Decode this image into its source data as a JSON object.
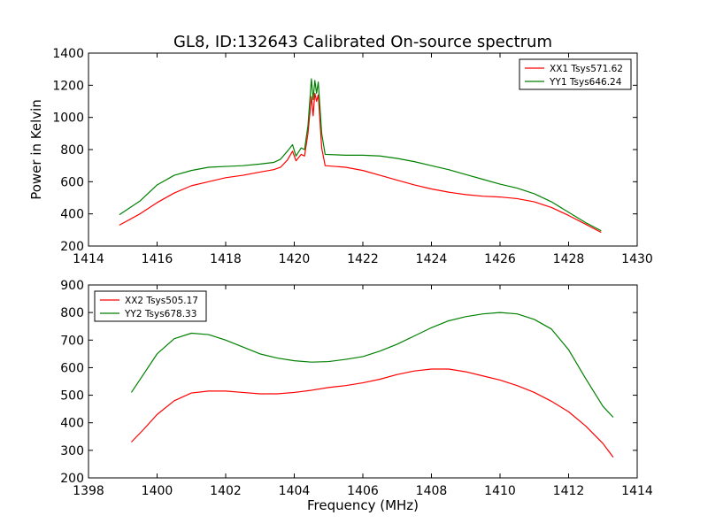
{
  "title": "GL8, ID:132643 Calibrated On-source spectrum",
  "colors": {
    "red": "#ff0000",
    "green": "#008000"
  },
  "chart_data": [
    {
      "type": "line",
      "ylabel": "Power in Kelvin",
      "xlabel": "",
      "xlim": [
        1414,
        1430
      ],
      "ylim": [
        200,
        1400
      ],
      "xticks": [
        1414,
        1416,
        1418,
        1420,
        1422,
        1424,
        1426,
        1428,
        1430
      ],
      "yticks": [
        200,
        400,
        600,
        800,
        1000,
        1200,
        1400
      ],
      "legend_position": "top-right",
      "series": [
        {
          "name": "XX1 Tsys571.62",
          "color": "#ff0000",
          "points": [
            [
              1414.9,
              330
            ],
            [
              1415.5,
              400
            ],
            [
              1416,
              470
            ],
            [
              1416.5,
              530
            ],
            [
              1417,
              575
            ],
            [
              1417.5,
              600
            ],
            [
              1418,
              625
            ],
            [
              1418.5,
              640
            ],
            [
              1419,
              660
            ],
            [
              1419.4,
              675
            ],
            [
              1419.6,
              690
            ],
            [
              1419.8,
              735
            ],
            [
              1419.95,
              790
            ],
            [
              1420.05,
              730
            ],
            [
              1420.2,
              770
            ],
            [
              1420.3,
              760
            ],
            [
              1420.4,
              900
            ],
            [
              1420.5,
              1130
            ],
            [
              1420.55,
              1010
            ],
            [
              1420.6,
              1150
            ],
            [
              1420.65,
              1100
            ],
            [
              1420.7,
              1140
            ],
            [
              1420.8,
              810
            ],
            [
              1420.9,
              700
            ],
            [
              1421.5,
              690
            ],
            [
              1422,
              670
            ],
            [
              1422.5,
              640
            ],
            [
              1423,
              610
            ],
            [
              1423.5,
              580
            ],
            [
              1424,
              555
            ],
            [
              1424.5,
              535
            ],
            [
              1425,
              520
            ],
            [
              1425.5,
              510
            ],
            [
              1426,
              505
            ],
            [
              1426.5,
              495
            ],
            [
              1427,
              475
            ],
            [
              1427.5,
              440
            ],
            [
              1428,
              390
            ],
            [
              1428.5,
              335
            ],
            [
              1428.95,
              285
            ]
          ]
        },
        {
          "name": "YY1 Tsys646.24",
          "color": "#008000",
          "points": [
            [
              1414.9,
              395
            ],
            [
              1415.5,
              480
            ],
            [
              1416,
              580
            ],
            [
              1416.5,
              640
            ],
            [
              1417,
              670
            ],
            [
              1417.5,
              690
            ],
            [
              1418,
              695
            ],
            [
              1418.5,
              700
            ],
            [
              1419,
              710
            ],
            [
              1419.4,
              720
            ],
            [
              1419.6,
              740
            ],
            [
              1419.8,
              790
            ],
            [
              1419.95,
              830
            ],
            [
              1420.05,
              760
            ],
            [
              1420.2,
              810
            ],
            [
              1420.3,
              800
            ],
            [
              1420.4,
              950
            ],
            [
              1420.5,
              1240
            ],
            [
              1420.55,
              1110
            ],
            [
              1420.6,
              1230
            ],
            [
              1420.65,
              1150
            ],
            [
              1420.7,
              1220
            ],
            [
              1420.8,
              900
            ],
            [
              1420.9,
              770
            ],
            [
              1421.5,
              765
            ],
            [
              1422,
              765
            ],
            [
              1422.5,
              760
            ],
            [
              1423,
              745
            ],
            [
              1423.5,
              725
            ],
            [
              1424,
              700
            ],
            [
              1424.5,
              675
            ],
            [
              1425,
              645
            ],
            [
              1425.5,
              615
            ],
            [
              1426,
              585
            ],
            [
              1426.5,
              560
            ],
            [
              1427,
              525
            ],
            [
              1427.5,
              475
            ],
            [
              1428,
              410
            ],
            [
              1428.5,
              345
            ],
            [
              1428.95,
              295
            ]
          ]
        }
      ]
    },
    {
      "type": "line",
      "xlabel": "Frequency (MHz)",
      "ylabel": "",
      "xlim": [
        1398,
        1414
      ],
      "ylim": [
        200,
        900
      ],
      "xticks": [
        1398,
        1400,
        1402,
        1404,
        1406,
        1408,
        1410,
        1412,
        1414
      ],
      "yticks": [
        200,
        300,
        400,
        500,
        600,
        700,
        800,
        900
      ],
      "legend_position": "top-left",
      "series": [
        {
          "name": "XX2 Tsys505.17",
          "color": "#ff0000",
          "points": [
            [
              1399.25,
              330
            ],
            [
              1399.6,
              375
            ],
            [
              1400,
              430
            ],
            [
              1400.5,
              480
            ],
            [
              1401,
              508
            ],
            [
              1401.5,
              515
            ],
            [
              1402,
              515
            ],
            [
              1402.5,
              510
            ],
            [
              1403,
              505
            ],
            [
              1403.5,
              505
            ],
            [
              1404,
              510
            ],
            [
              1404.5,
              518
            ],
            [
              1405,
              528
            ],
            [
              1405.5,
              535
            ],
            [
              1406,
              545
            ],
            [
              1406.5,
              558
            ],
            [
              1407,
              575
            ],
            [
              1407.5,
              588
            ],
            [
              1408,
              595
            ],
            [
              1408.5,
              595
            ],
            [
              1409,
              585
            ],
            [
              1409.5,
              570
            ],
            [
              1410,
              555
            ],
            [
              1410.5,
              535
            ],
            [
              1411,
              510
            ],
            [
              1411.5,
              478
            ],
            [
              1412,
              440
            ],
            [
              1412.5,
              388
            ],
            [
              1413,
              325
            ],
            [
              1413.3,
              275
            ]
          ]
        },
        {
          "name": "YY2 Tsys678.33",
          "color": "#008000",
          "points": [
            [
              1399.25,
              510
            ],
            [
              1399.6,
              575
            ],
            [
              1400,
              650
            ],
            [
              1400.5,
              705
            ],
            [
              1401,
              725
            ],
            [
              1401.5,
              720
            ],
            [
              1402,
              700
            ],
            [
              1402.5,
              675
            ],
            [
              1403,
              650
            ],
            [
              1403.5,
              635
            ],
            [
              1404,
              625
            ],
            [
              1404.5,
              620
            ],
            [
              1405,
              622
            ],
            [
              1405.5,
              630
            ],
            [
              1406,
              640
            ],
            [
              1406.5,
              660
            ],
            [
              1407,
              685
            ],
            [
              1407.5,
              715
            ],
            [
              1408,
              745
            ],
            [
              1408.5,
              770
            ],
            [
              1409,
              785
            ],
            [
              1409.5,
              795
            ],
            [
              1410,
              800
            ],
            [
              1410.5,
              795
            ],
            [
              1411,
              775
            ],
            [
              1411.5,
              740
            ],
            [
              1412,
              665
            ],
            [
              1412.5,
              560
            ],
            [
              1413,
              460
            ],
            [
              1413.3,
              420
            ]
          ]
        }
      ]
    }
  ]
}
